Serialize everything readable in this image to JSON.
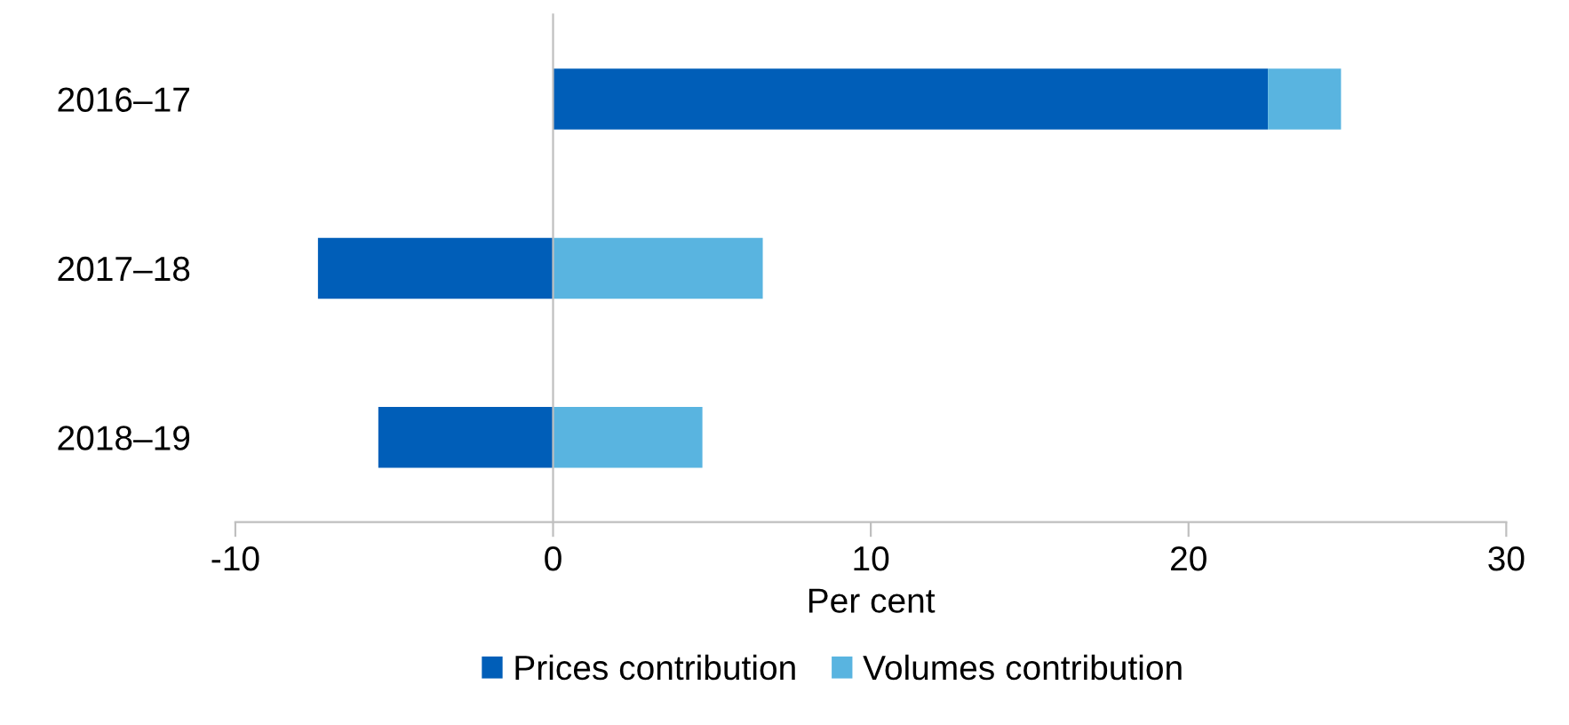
{
  "chart_data": {
    "type": "bar",
    "orientation": "horizontal",
    "stacked": true,
    "categories": [
      "2016–17",
      "2017–18",
      "2018–19"
    ],
    "series": [
      {
        "name": "Prices contribution",
        "color": "#005eb8",
        "values": [
          22.5,
          -7.4,
          -5.5
        ]
      },
      {
        "name": "Volumes contribution",
        "color": "#59b4e0",
        "values": [
          2.3,
          6.6,
          4.7
        ]
      }
    ],
    "xlim": [
      -10,
      30
    ],
    "xticks": [
      -10,
      0,
      10,
      20,
      30
    ],
    "xlabel": "Per cent",
    "legend": "bottom"
  }
}
